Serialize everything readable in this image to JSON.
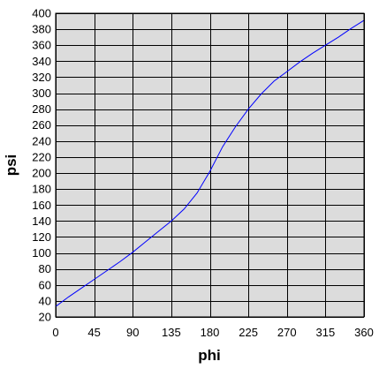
{
  "chart_data": {
    "type": "line",
    "title": "",
    "xlabel": "phi",
    "ylabel": "psi",
    "xlim": [
      0,
      360
    ],
    "ylim": [
      20,
      400
    ],
    "xticks": [
      0,
      45,
      90,
      135,
      180,
      225,
      270,
      315,
      360
    ],
    "yticks": [
      20,
      40,
      60,
      80,
      100,
      120,
      140,
      160,
      180,
      200,
      220,
      240,
      260,
      280,
      300,
      320,
      340,
      360,
      380,
      400
    ],
    "grid": true,
    "legend": "none",
    "colors": {
      "plot_background": "#dcdcdc",
      "grid": "#000000",
      "line": "#0000ff"
    },
    "series": [
      {
        "x": [
          0,
          15,
          30,
          45,
          60,
          75,
          90,
          105,
          120,
          135,
          150,
          165,
          180,
          195,
          210,
          225,
          240,
          255,
          270,
          285,
          300,
          315,
          330,
          345,
          360
        ],
        "y": [
          33,
          45,
          56,
          67,
          78,
          89,
          101,
          114,
          127,
          140,
          155,
          175,
          202,
          233,
          258,
          280,
          299,
          315,
          327,
          339,
          350,
          360,
          370,
          381,
          391
        ]
      }
    ]
  }
}
